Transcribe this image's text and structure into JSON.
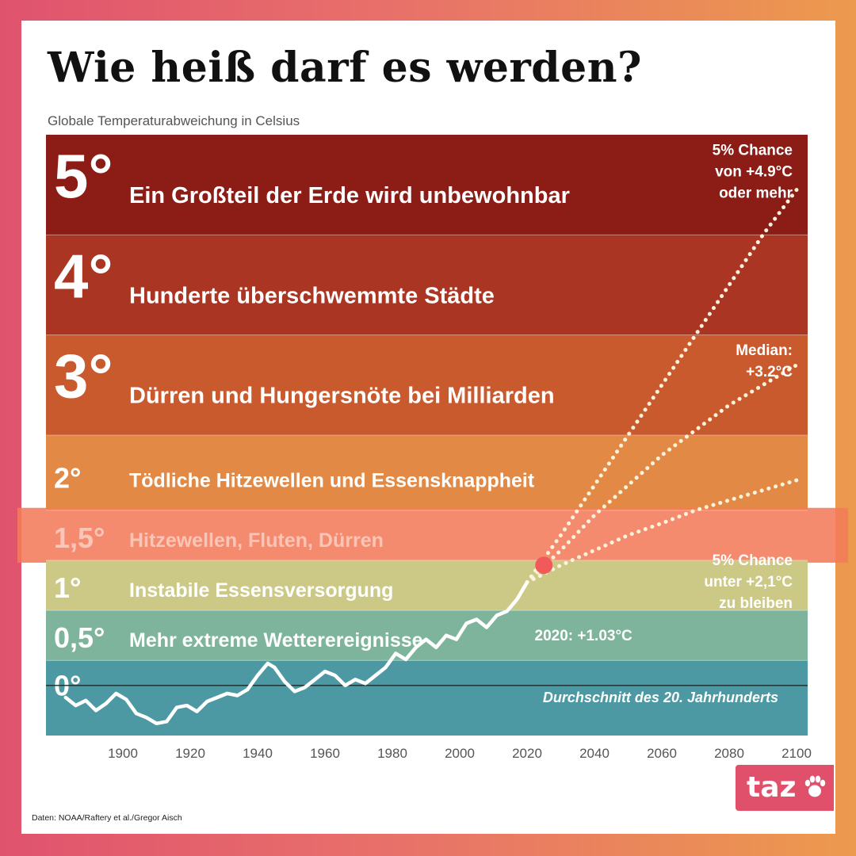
{
  "title": "Wie heiß darf es werden?",
  "subtitle": "Globale Temperaturabweichung in Celsius",
  "source": "Daten: NOAA/Raftery et al./Gregor Aisch",
  "logo": {
    "text": "taz",
    "icon": "paw-icon",
    "color": "#e0506a"
  },
  "chart_data": {
    "type": "line",
    "xlim": [
      1880,
      2100
    ],
    "ylim": [
      -0.5,
      5.5
    ],
    "x_ticks": [
      "1900",
      "1920",
      "1940",
      "1960",
      "1980",
      "2000",
      "2020",
      "2040",
      "2060",
      "2080",
      "2100"
    ],
    "bands": [
      {
        "level": "5°",
        "text": "Ein Großteil der Erde wird unbewohnbar",
        "from": 4.5,
        "to": 5.5,
        "color": "#8b1d16"
      },
      {
        "level": "4°",
        "text": "Hunderte überschwemmte Städte",
        "from": 3.5,
        "to": 4.5,
        "color": "#a93522"
      },
      {
        "level": "3°",
        "text": "Dürren und Hungersnöte bei Milliarden",
        "from": 2.5,
        "to": 3.5,
        "color": "#c95a2e"
      },
      {
        "level": "2°",
        "text": "Tödliche Hitzewellen und Essensknappheit",
        "from": 1.75,
        "to": 2.5,
        "color": "#e28a45"
      },
      {
        "level": "1,5°",
        "text": "Hitzewellen, Fluten, Dürren",
        "from": 1.25,
        "to": 1.75,
        "color": "#f47b5a"
      },
      {
        "level": "1°",
        "text": "Instabile Essensversorgung",
        "from": 0.75,
        "to": 1.25,
        "color": "#ccc986"
      },
      {
        "level": "0,5°",
        "text": "Mehr extreme Wetterereignisse",
        "from": 0.25,
        "to": 0.75,
        "color": "#7eb49b"
      },
      {
        "level": "0°",
        "text": "",
        "from": -0.5,
        "to": 0.25,
        "color": "#4c99a3"
      }
    ],
    "baseline": {
      "y": 0.0,
      "label": "Durchschnitt des 20. Jahrhunderts"
    },
    "highlight_band": "1,5°",
    "observed": {
      "name": "",
      "x": [
        1883,
        1886,
        1889,
        1892,
        1895,
        1898,
        1901,
        1904,
        1907,
        1910,
        1913,
        1916,
        1919,
        1922,
        1925,
        1928,
        1931,
        1934,
        1937,
        1940,
        1943,
        1945,
        1948,
        1951,
        1954,
        1957,
        1960,
        1963,
        1966,
        1969,
        1972,
        1975,
        1978,
        1981,
        1984,
        1987,
        1990,
        1993,
        1996,
        1999,
        2002,
        2005,
        2008,
        2011,
        2014,
        2017,
        2020
      ],
      "y": [
        -0.12,
        -0.2,
        -0.15,
        -0.25,
        -0.18,
        -0.08,
        -0.14,
        -0.28,
        -0.32,
        -0.38,
        -0.36,
        -0.22,
        -0.2,
        -0.26,
        -0.16,
        -0.12,
        -0.08,
        -0.1,
        -0.04,
        0.1,
        0.22,
        0.18,
        0.04,
        -0.06,
        -0.02,
        0.06,
        0.14,
        0.1,
        0.0,
        0.06,
        0.02,
        0.1,
        0.18,
        0.32,
        0.26,
        0.38,
        0.46,
        0.38,
        0.5,
        0.46,
        0.62,
        0.66,
        0.58,
        0.7,
        0.74,
        0.86,
        1.03
      ]
    },
    "projections": [
      {
        "name": "5% Chance von +4.9°C oder mehr",
        "x": [
          2020,
          2030,
          2040,
          2050,
          2060,
          2070,
          2080,
          2090,
          2100
        ],
        "y": [
          1.03,
          1.5,
          2.0,
          2.5,
          3.0,
          3.5,
          4.0,
          4.5,
          4.95
        ]
      },
      {
        "name": "Median: +3.2°C",
        "x": [
          2020,
          2030,
          2040,
          2050,
          2060,
          2070,
          2080,
          2090,
          2100
        ],
        "y": [
          1.03,
          1.35,
          1.7,
          2.0,
          2.3,
          2.55,
          2.8,
          3.0,
          3.2
        ]
      },
      {
        "name": "5% Chance unter +2,1°C zu bleiben",
        "x": [
          2020,
          2030,
          2040,
          2050,
          2060,
          2070,
          2080,
          2090,
          2100
        ],
        "y": [
          1.03,
          1.2,
          1.35,
          1.5,
          1.62,
          1.75,
          1.85,
          1.95,
          2.05
        ]
      }
    ],
    "marker": {
      "x": 2025,
      "y": 1.2,
      "color": "#f25a5a"
    },
    "annotations": [
      {
        "lines": [
          "5% Chance",
          "von +4.9°C",
          "oder mehr"
        ],
        "x": 2098,
        "y": 5.3
      },
      {
        "lines": [
          "Median:",
          "+3.2°C"
        ],
        "x": 2098,
        "y": 3.3
      },
      {
        "lines": [
          "5% Chance",
          "unter +2,1°C",
          "zu bleiben"
        ],
        "x": 2098,
        "y": 1.2
      },
      {
        "lines": [
          "2020: +1.03°C"
        ],
        "x": 2026,
        "y": 0.45
      }
    ],
    "colors": {
      "observed": "#ffffff",
      "projection": "#fdf3dc",
      "axis_text": "#555555",
      "band_text": "#ffffff"
    }
  }
}
